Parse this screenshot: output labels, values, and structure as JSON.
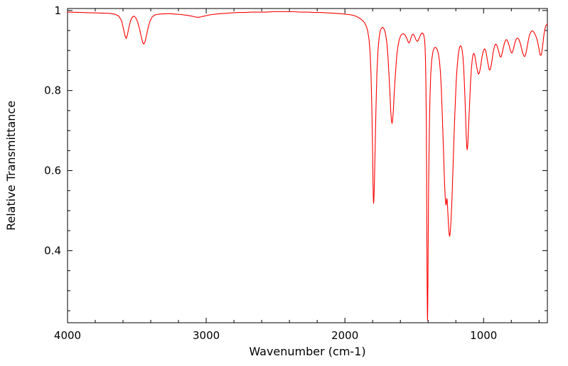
{
  "chart_data": {
    "type": "line",
    "title": "",
    "xlabel": "Wavenumber (cm-1)",
    "ylabel": "Relative Transmittance",
    "x_axis_reversed": true,
    "xlim": [
      4000,
      540
    ],
    "ylim": [
      0.22,
      1.005
    ],
    "grid": false,
    "legend_position": "none",
    "xticks": {
      "values": [
        4000,
        3000,
        2000,
        1000
      ],
      "labels": [
        "4000",
        "3000",
        "2000",
        "1000"
      ],
      "minor": [
        3800,
        3600,
        3400,
        3200,
        2800,
        2600,
        2400,
        2200,
        1800,
        1600,
        1400,
        1200,
        800,
        600
      ]
    },
    "yticks": {
      "values": [
        0.4,
        0.6,
        0.8,
        1
      ],
      "labels": [
        "0.4",
        "0.6",
        "0.8",
        "1"
      ],
      "minor": [
        0.25,
        0.3,
        0.35,
        0.45,
        0.5,
        0.55,
        0.65,
        0.7,
        0.75,
        0.85,
        0.9,
        0.95
      ]
    },
    "series": [
      {
        "name": "transmittance",
        "color": "#ff0000",
        "points": [
          [
            4000,
            0.996
          ],
          [
            3900,
            0.995
          ],
          [
            3800,
            0.994
          ],
          [
            3700,
            0.993
          ],
          [
            3660,
            0.991
          ],
          [
            3630,
            0.986
          ],
          [
            3610,
            0.974
          ],
          [
            3595,
            0.952
          ],
          [
            3585,
            0.936
          ],
          [
            3577,
            0.93
          ],
          [
            3569,
            0.938
          ],
          [
            3558,
            0.957
          ],
          [
            3546,
            0.974
          ],
          [
            3534,
            0.983
          ],
          [
            3522,
            0.986
          ],
          [
            3508,
            0.982
          ],
          [
            3494,
            0.971
          ],
          [
            3480,
            0.953
          ],
          [
            3468,
            0.934
          ],
          [
            3458,
            0.92
          ],
          [
            3450,
            0.916
          ],
          [
            3442,
            0.921
          ],
          [
            3432,
            0.936
          ],
          [
            3420,
            0.956
          ],
          [
            3406,
            0.973
          ],
          [
            3390,
            0.984
          ],
          [
            3370,
            0.989
          ],
          [
            3340,
            0.991
          ],
          [
            3300,
            0.992
          ],
          [
            3260,
            0.992
          ],
          [
            3220,
            0.991
          ],
          [
            3180,
            0.99
          ],
          [
            3140,
            0.988
          ],
          [
            3105,
            0.986
          ],
          [
            3080,
            0.984
          ],
          [
            3060,
            0.983
          ],
          [
            3040,
            0.984
          ],
          [
            3015,
            0.986
          ],
          [
            2990,
            0.988
          ],
          [
            2960,
            0.99
          ],
          [
            2930,
            0.991
          ],
          [
            2900,
            0.992
          ],
          [
            2860,
            0.993
          ],
          [
            2820,
            0.994
          ],
          [
            2770,
            0.995
          ],
          [
            2720,
            0.995
          ],
          [
            2670,
            0.996
          ],
          [
            2620,
            0.996
          ],
          [
            2570,
            0.996
          ],
          [
            2520,
            0.997
          ],
          [
            2470,
            0.997
          ],
          [
            2420,
            0.997
          ],
          [
            2370,
            0.997
          ],
          [
            2320,
            0.996
          ],
          [
            2270,
            0.996
          ],
          [
            2220,
            0.995
          ],
          [
            2170,
            0.995
          ],
          [
            2120,
            0.994
          ],
          [
            2070,
            0.993
          ],
          [
            2030,
            0.992
          ],
          [
            2000,
            0.991
          ],
          [
            1970,
            0.99
          ],
          [
            1940,
            0.988
          ],
          [
            1915,
            0.985
          ],
          [
            1895,
            0.981
          ],
          [
            1875,
            0.976
          ],
          [
            1858,
            0.969
          ],
          [
            1845,
            0.96
          ],
          [
            1835,
            0.948
          ],
          [
            1826,
            0.928
          ],
          [
            1818,
            0.893
          ],
          [
            1811,
            0.835
          ],
          [
            1805,
            0.745
          ],
          [
            1800,
            0.64
          ],
          [
            1797,
            0.56
          ],
          [
            1794,
            0.518
          ],
          [
            1791,
            0.525
          ],
          [
            1787,
            0.57
          ],
          [
            1782,
            0.655
          ],
          [
            1776,
            0.757
          ],
          [
            1769,
            0.845
          ],
          [
            1761,
            0.902
          ],
          [
            1753,
            0.933
          ],
          [
            1745,
            0.949
          ],
          [
            1737,
            0.956
          ],
          [
            1729,
            0.958
          ],
          [
            1721,
            0.956
          ],
          [
            1713,
            0.95
          ],
          [
            1705,
            0.938
          ],
          [
            1697,
            0.917
          ],
          [
            1689,
            0.884
          ],
          [
            1682,
            0.84
          ],
          [
            1675,
            0.79
          ],
          [
            1669,
            0.748
          ],
          [
            1664,
            0.724
          ],
          [
            1660,
            0.718
          ],
          [
            1656,
            0.727
          ],
          [
            1651,
            0.75
          ],
          [
            1645,
            0.788
          ],
          [
            1638,
            0.83
          ],
          [
            1631,
            0.866
          ],
          [
            1624,
            0.894
          ],
          [
            1616,
            0.914
          ],
          [
            1608,
            0.927
          ],
          [
            1599,
            0.936
          ],
          [
            1589,
            0.941
          ],
          [
            1579,
            0.942
          ],
          [
            1569,
            0.94
          ],
          [
            1560,
            0.935
          ],
          [
            1551,
            0.928
          ],
          [
            1543,
            0.921
          ],
          [
            1537,
            0.919
          ],
          [
            1531,
            0.923
          ],
          [
            1524,
            0.931
          ],
          [
            1517,
            0.938
          ],
          [
            1510,
            0.941
          ],
          [
            1503,
            0.939
          ],
          [
            1496,
            0.934
          ],
          [
            1489,
            0.928
          ],
          [
            1482,
            0.924
          ],
          [
            1476,
            0.923
          ],
          [
            1470,
            0.926
          ],
          [
            1463,
            0.932
          ],
          [
            1456,
            0.938
          ],
          [
            1449,
            0.942
          ],
          [
            1443,
            0.944
          ],
          [
            1437,
            0.943
          ],
          [
            1431,
            0.938
          ],
          [
            1426,
            0.928
          ],
          [
            1422,
            0.91
          ],
          [
            1419,
            0.878
          ],
          [
            1416,
            0.82
          ],
          [
            1413,
            0.72
          ],
          [
            1411,
            0.58
          ],
          [
            1409,
            0.42
          ],
          [
            1407,
            0.3
          ],
          [
            1405.5,
            0.24
          ],
          [
            1404,
            0.226
          ],
          [
            1402.5,
            0.26
          ],
          [
            1401,
            0.33
          ],
          [
            1399,
            0.44
          ],
          [
            1396,
            0.57
          ],
          [
            1392,
            0.69
          ],
          [
            1387,
            0.78
          ],
          [
            1381,
            0.84
          ],
          [
            1374,
            0.876
          ],
          [
            1366,
            0.896
          ],
          [
            1358,
            0.905
          ],
          [
            1350,
            0.908
          ],
          [
            1342,
            0.907
          ],
          [
            1334,
            0.902
          ],
          [
            1326,
            0.892
          ],
          [
            1318,
            0.874
          ],
          [
            1311,
            0.845
          ],
          [
            1305,
            0.805
          ],
          [
            1299,
            0.752
          ],
          [
            1293,
            0.69
          ],
          [
            1287,
            0.625
          ],
          [
            1281,
            0.565
          ],
          [
            1276,
            0.53
          ],
          [
            1272,
            0.514
          ],
          [
            1269,
            0.518
          ],
          [
            1266,
            0.53
          ],
          [
            1263,
            0.528
          ],
          [
            1260,
            0.512
          ],
          [
            1256,
            0.485
          ],
          [
            1252,
            0.458
          ],
          [
            1248,
            0.441
          ],
          [
            1245,
            0.436
          ],
          [
            1242,
            0.44
          ],
          [
            1238,
            0.456
          ],
          [
            1233,
            0.488
          ],
          [
            1227,
            0.538
          ],
          [
            1221,
            0.6
          ],
          [
            1215,
            0.665
          ],
          [
            1209,
            0.726
          ],
          [
            1203,
            0.78
          ],
          [
            1197,
            0.824
          ],
          [
            1191,
            0.858
          ],
          [
            1185,
            0.882
          ],
          [
            1179,
            0.898
          ],
          [
            1173,
            0.908
          ],
          [
            1167,
            0.912
          ],
          [
            1161,
            0.91
          ],
          [
            1155,
            0.902
          ],
          [
            1149,
            0.885
          ],
          [
            1144,
            0.86
          ],
          [
            1139,
            0.825
          ],
          [
            1134,
            0.78
          ],
          [
            1129,
            0.728
          ],
          [
            1125,
            0.685
          ],
          [
            1121,
            0.658
          ],
          [
            1118,
            0.652
          ],
          [
            1115,
            0.66
          ],
          [
            1111,
            0.686
          ],
          [
            1106,
            0.728
          ],
          [
            1100,
            0.776
          ],
          [
            1094,
            0.82
          ],
          [
            1088,
            0.854
          ],
          [
            1082,
            0.877
          ],
          [
            1076,
            0.89
          ],
          [
            1070,
            0.893
          ],
          [
            1064,
            0.888
          ],
          [
            1058,
            0.877
          ],
          [
            1052,
            0.864
          ],
          [
            1046,
            0.852
          ],
          [
            1041,
            0.844
          ],
          [
            1036,
            0.841
          ],
          [
            1031,
            0.844
          ],
          [
            1025,
            0.853
          ],
          [
            1019,
            0.866
          ],
          [
            1013,
            0.88
          ],
          [
            1007,
            0.892
          ],
          [
            1001,
            0.9
          ],
          [
            995,
            0.904
          ],
          [
            989,
            0.903
          ],
          [
            983,
            0.897
          ],
          [
            977,
            0.886
          ],
          [
            971,
            0.873
          ],
          [
            965,
            0.861
          ],
          [
            960,
            0.853
          ],
          [
            955,
            0.851
          ],
          [
            950,
            0.855
          ],
          [
            944,
            0.865
          ],
          [
            938,
            0.879
          ],
          [
            932,
            0.893
          ],
          [
            926,
            0.904
          ],
          [
            920,
            0.912
          ],
          [
            914,
            0.916
          ],
          [
            908,
            0.915
          ],
          [
            902,
            0.911
          ],
          [
            896,
            0.904
          ],
          [
            890,
            0.896
          ],
          [
            884,
            0.888
          ],
          [
            879,
            0.884
          ],
          [
            874,
            0.884
          ],
          [
            869,
            0.889
          ],
          [
            863,
            0.898
          ],
          [
            857,
            0.908
          ],
          [
            851,
            0.917
          ],
          [
            845,
            0.923
          ],
          [
            839,
            0.927
          ],
          [
            833,
            0.927
          ],
          [
            827,
            0.924
          ],
          [
            821,
            0.918
          ],
          [
            815,
            0.911
          ],
          [
            809,
            0.903
          ],
          [
            803,
            0.897
          ],
          [
            798,
            0.894
          ],
          [
            793,
            0.895
          ],
          [
            788,
            0.9
          ],
          [
            782,
            0.908
          ],
          [
            776,
            0.917
          ],
          [
            770,
            0.924
          ],
          [
            764,
            0.929
          ],
          [
            758,
            0.931
          ],
          [
            752,
            0.931
          ],
          [
            746,
            0.928
          ],
          [
            740,
            0.923
          ],
          [
            734,
            0.916
          ],
          [
            728,
            0.908
          ],
          [
            722,
            0.899
          ],
          [
            716,
            0.892
          ],
          [
            710,
            0.887
          ],
          [
            705,
            0.885
          ],
          [
            700,
            0.887
          ],
          [
            694,
            0.894
          ],
          [
            688,
            0.905
          ],
          [
            682,
            0.917
          ],
          [
            676,
            0.928
          ],
          [
            670,
            0.937
          ],
          [
            664,
            0.943
          ],
          [
            658,
            0.947
          ],
          [
            652,
            0.949
          ],
          [
            646,
            0.949
          ],
          [
            640,
            0.947
          ],
          [
            634,
            0.944
          ],
          [
            628,
            0.94
          ],
          [
            622,
            0.935
          ],
          [
            616,
            0.929
          ],
          [
            610,
            0.921
          ],
          [
            604,
            0.911
          ],
          [
            599,
            0.901
          ],
          [
            594,
            0.892
          ],
          [
            590,
            0.888
          ],
          [
            586,
            0.888
          ],
          [
            582,
            0.893
          ],
          [
            577,
            0.904
          ],
          [
            572,
            0.918
          ],
          [
            567,
            0.933
          ],
          [
            562,
            0.946
          ],
          [
            557,
            0.955
          ],
          [
            552,
            0.961
          ],
          [
            547,
            0.964
          ],
          [
            542,
            0.966
          ],
          [
            540,
            0.966
          ]
        ]
      }
    ]
  }
}
